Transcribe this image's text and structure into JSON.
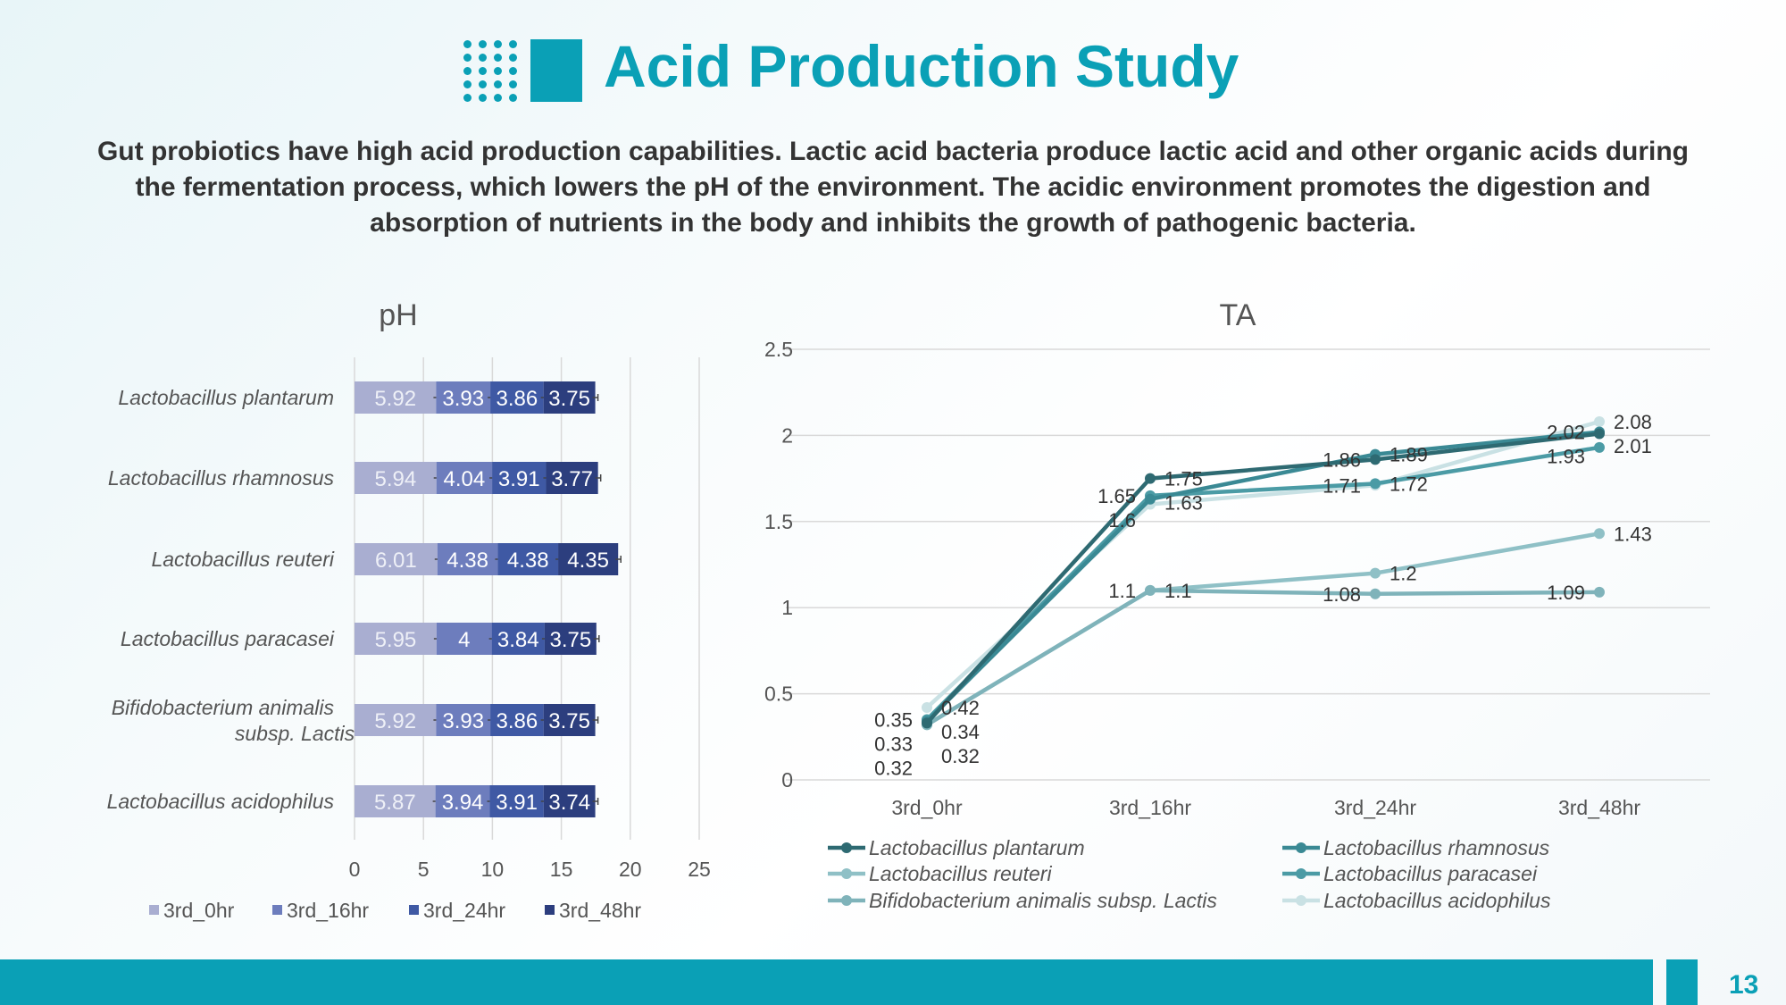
{
  "header": {
    "title": "Acid Production Study"
  },
  "description": "Gut probiotics have high acid production capabilities. Lactic acid bacteria produce lactic acid and other organic acids during the fermentation process, which lowers the pH of the environment. The acidic environment promotes the digestion and absorption of nutrients in the body and inhibits the growth of pathogenic bacteria.",
  "page_number": "13",
  "colors": {
    "accent": "#0aa0b6"
  },
  "chart_data": [
    {
      "type": "bar",
      "orientation": "horizontal-stacked",
      "title": "pH",
      "categories": [
        "Lactobacillus plantarum",
        "Lactobacillus rhamnosus",
        "Lactobacillus reuteri",
        "Lactobacillus paracasei",
        "Bifidobacterium animalis subsp. Lactis",
        "Lactobacillus acidophilus"
      ],
      "category_lines": [
        [
          "Lactobacillus plantarum"
        ],
        [
          "Lactobacillus rhamnosus"
        ],
        [
          "Lactobacillus reuteri"
        ],
        [
          "Lactobacillus paracasei"
        ],
        [
          "Bifidobacterium animalis",
          "subsp. Lactis"
        ],
        [
          "Lactobacillus acidophilus"
        ]
      ],
      "series": [
        {
          "name": "3rd_0hr",
          "color": "#a9aed1",
          "values": [
            5.92,
            5.94,
            6.01,
            5.95,
            5.92,
            5.87
          ]
        },
        {
          "name": "3rd_16hr",
          "color": "#6d7dbd",
          "values": [
            3.93,
            4.04,
            4.38,
            4,
            3.93,
            3.94
          ]
        },
        {
          "name": "3rd_24hr",
          "color": "#3f59a4",
          "values": [
            3.86,
            3.91,
            4.38,
            3.84,
            3.86,
            3.91
          ]
        },
        {
          "name": "3rd_48hr",
          "color": "#2c3e7e",
          "values": [
            3.75,
            3.77,
            4.35,
            3.75,
            3.75,
            3.74
          ]
        }
      ],
      "xlim": [
        0,
        25
      ],
      "xticks": [
        "0",
        "5",
        "10",
        "15",
        "20",
        "25"
      ],
      "legend": "bottom",
      "grid": true
    },
    {
      "type": "line",
      "title": "TA",
      "categories": [
        "3rd_0hr",
        "3rd_16hr",
        "3rd_24hr",
        "3rd_48hr"
      ],
      "series": [
        {
          "name": "Lactobacillus plantarum",
          "color": "#2e6a72",
          "values": [
            0.33,
            1.75,
            1.86,
            2.01
          ]
        },
        {
          "name": "Lactobacillus rhamnosus",
          "color": "#3a8994",
          "values": [
            0.34,
            1.63,
            1.89,
            2.02
          ]
        },
        {
          "name": "Lactobacillus reuteri",
          "color": "#8fc0c6",
          "values": [
            0.32,
            1.1,
            1.2,
            1.43
          ]
        },
        {
          "name": "Lactobacillus paracasei",
          "color": "#4b9ba5",
          "values": [
            0.35,
            1.65,
            1.72,
            1.93
          ]
        },
        {
          "name": "Bifidobacterium animalis subsp. Lactis",
          "color": "#7fb3ba",
          "values": [
            0.32,
            1.1,
            1.08,
            1.09
          ]
        },
        {
          "name": "Lactobacillus acidophilus",
          "color": "#c9e1e4",
          "values": [
            0.42,
            1.6,
            1.71,
            2.08
          ]
        }
      ],
      "ylim": [
        0,
        2.5
      ],
      "yticks": [
        "0",
        "0.5",
        "1",
        "1.5",
        "2",
        "2.5"
      ],
      "legend": "bottom",
      "grid": true
    }
  ]
}
